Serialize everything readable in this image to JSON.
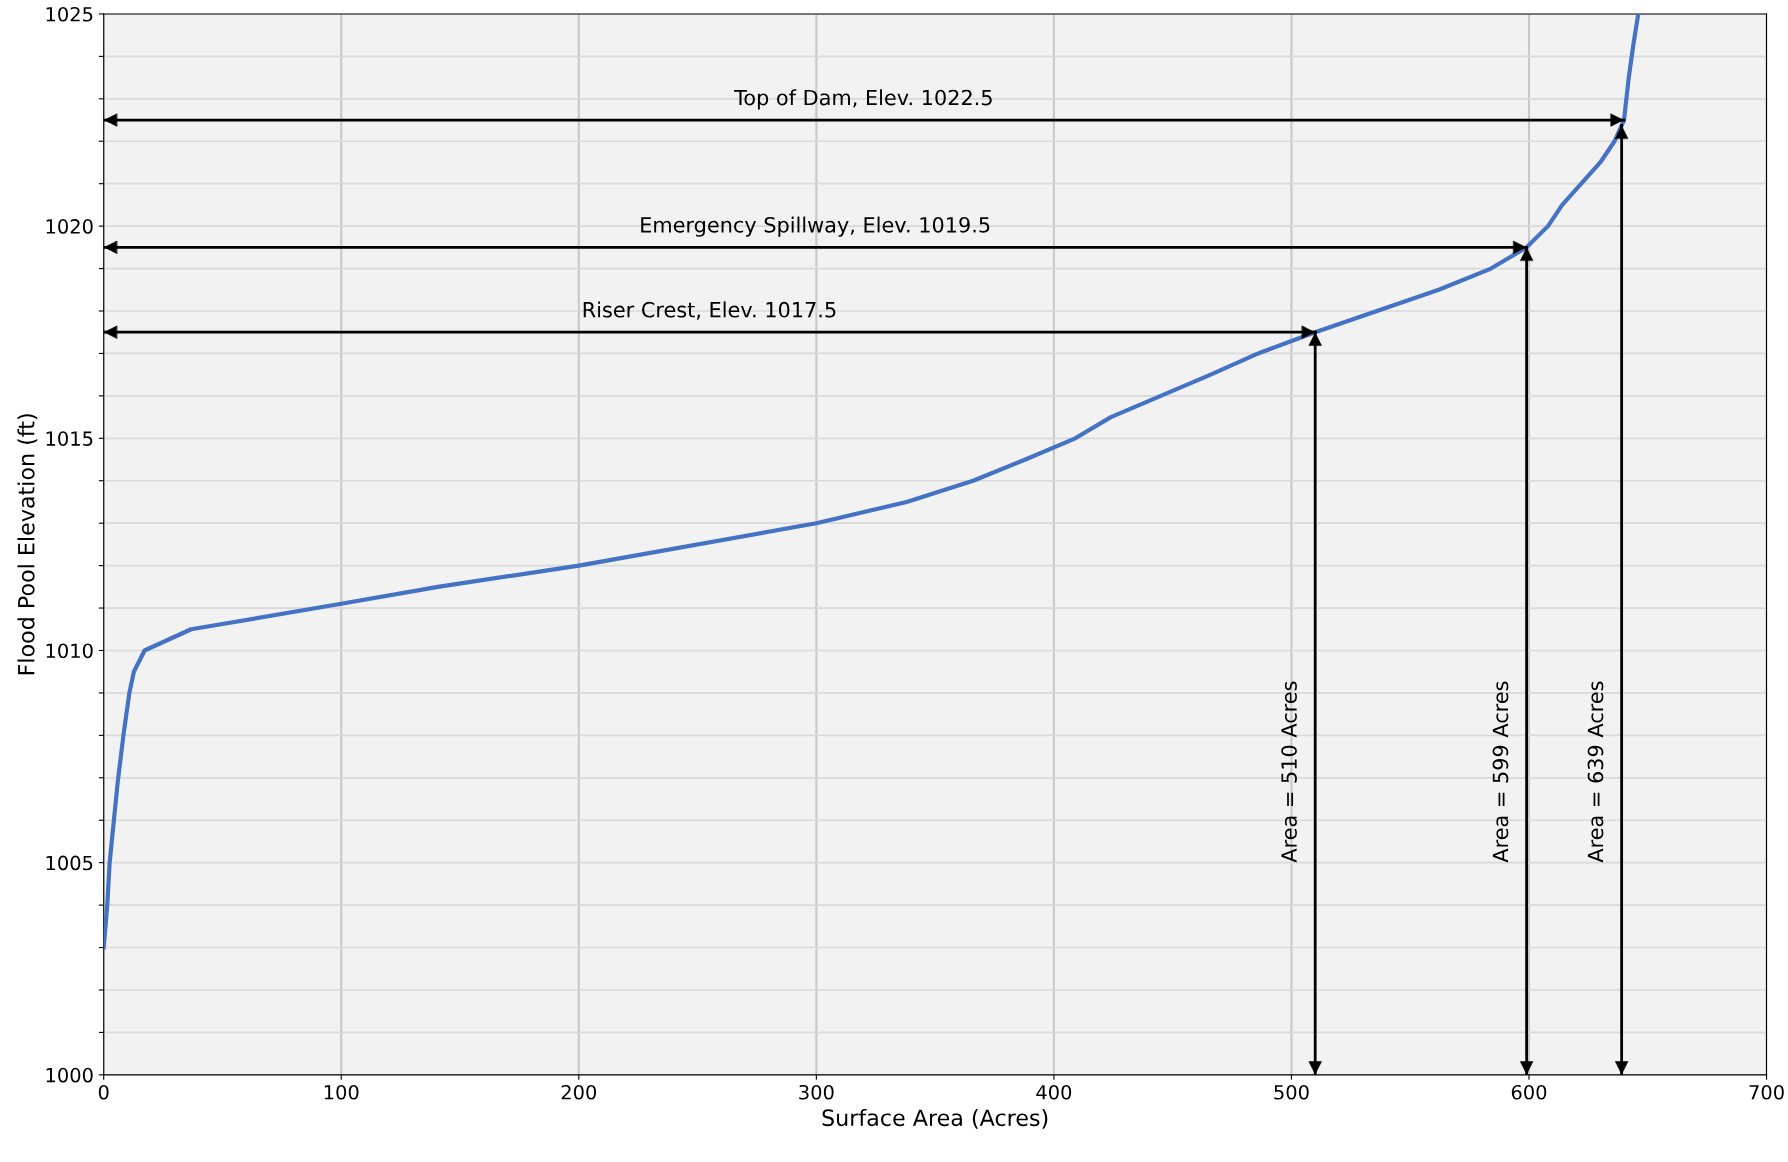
{
  "chart_data": {
    "type": "line",
    "xlabel": "Surface Area (Acres)",
    "ylabel": "Flood Pool Elevation (ft)",
    "x": [
      0,
      1.5,
      2.5,
      5.9,
      8.3,
      10.8,
      12.7,
      17.2,
      36.8,
      100,
      140.7,
      200,
      300,
      338,
      366,
      388,
      409,
      424,
      445,
      466,
      486,
      510,
      536,
      562,
      584,
      599,
      608,
      614,
      622,
      630,
      636,
      640,
      642,
      644,
      646
    ],
    "series": [
      {
        "color": "#4472c4",
        "values": [
          1003.0,
          1004.0,
          1005.0,
          1006.9,
          1008.0,
          1009.0,
          1009.5,
          1010.0,
          1010.5,
          1011.1,
          1011.5,
          1012.0,
          1013.0,
          1013.5,
          1014.0,
          1014.5,
          1015.0,
          1015.5,
          1016.0,
          1016.5,
          1017.0,
          1017.5,
          1018.0,
          1018.5,
          1019.0,
          1019.5,
          1020.0,
          1020.5,
          1021.0,
          1021.5,
          1022.0,
          1022.5,
          1023.5,
          1024.3,
          1025.0
        ]
      }
    ],
    "xlim": [
      0,
      700
    ],
    "xticks": [
      0,
      100,
      200,
      300,
      400,
      500,
      600,
      700
    ],
    "ylim": [
      1000,
      1025
    ],
    "yticks": [
      1000,
      {
        "value": 1001,
        "label": null
      },
      {
        "value": 1002,
        "label": null
      },
      {
        "value": 1003,
        "label": null
      },
      {
        "value": 1004,
        "label": null
      },
      1005,
      {
        "value": 1006,
        "label": null
      },
      {
        "value": 1007,
        "label": null
      },
      {
        "value": 1008,
        "label": null
      },
      {
        "value": 1009,
        "label": null
      },
      1010,
      {
        "value": 1011,
        "label": null
      },
      {
        "value": 1012,
        "label": null
      },
      {
        "value": 1013,
        "label": null
      },
      {
        "value": 1014,
        "label": null
      },
      1015,
      {
        "value": 1016,
        "label": null
      },
      {
        "value": 1017,
        "label": null
      },
      {
        "value": 1018,
        "label": null
      },
      {
        "value": 1019,
        "label": null
      },
      1020,
      {
        "value": 1021,
        "label": null
      },
      {
        "value": 1022,
        "label": null
      },
      {
        "value": 1023,
        "label": null
      },
      {
        "value": 1024,
        "label": null
      },
      1025
    ],
    "grid": true,
    "legend": false,
    "marker": "none",
    "line_style": "solid",
    "ref_lines": [
      {
        "axis": "y",
        "value": 1022.5,
        "label": "Top of Dam, Elev. 1022.5",
        "color": "#000000",
        "line_style": "solid"
      },
      {
        "axis": "y",
        "value": 1019.5,
        "label": "Emergency Spillway, Elev. 1019.5",
        "color": "#000000",
        "line_style": "solid"
      },
      {
        "axis": "y",
        "value": 1017.5,
        "label": "Riser Crest, Elev. 1017.5",
        "color": "#000000",
        "line_style": "solid"
      },
      {
        "axis": "x",
        "value": 510,
        "label": "Area = 510 Acres",
        "color": "#000000",
        "line_style": "solid"
      },
      {
        "axis": "x",
        "value": 599,
        "label": "Area = 599 Acres",
        "color": "#000000",
        "line_style": "solid"
      },
      {
        "axis": "x",
        "value": 639,
        "label": "Area = 639 Acres",
        "color": "#000000",
        "line_style": "solid"
      }
    ]
  }
}
